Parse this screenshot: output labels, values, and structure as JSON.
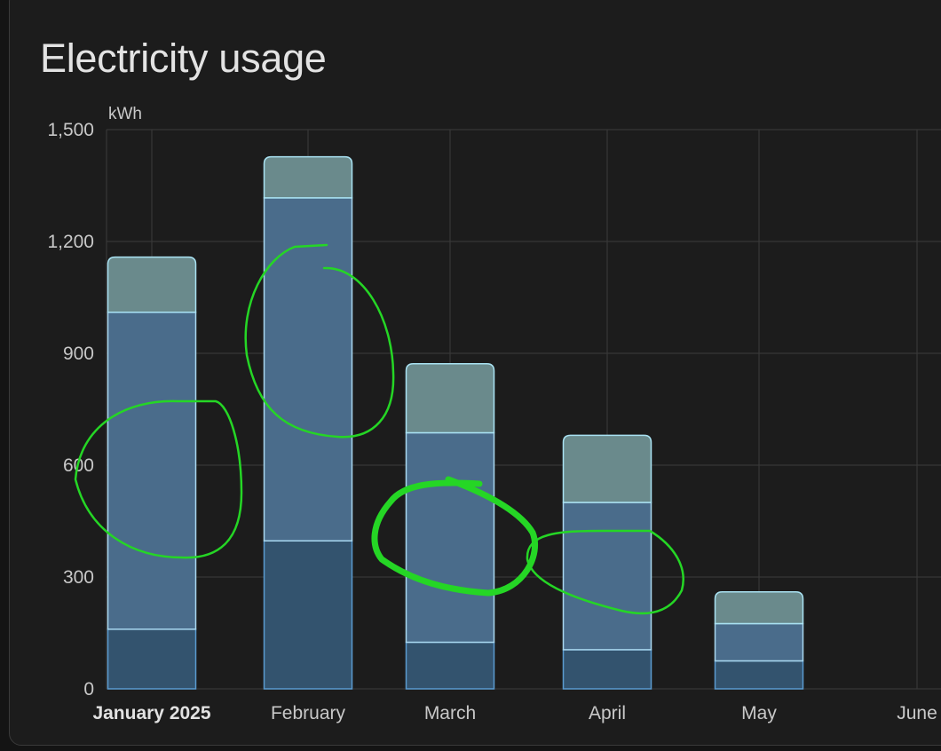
{
  "card": {
    "title": "Electricity usage"
  },
  "chart_data": {
    "type": "bar",
    "stacked": true,
    "title": "Electricity usage",
    "ylabel": "kWh",
    "ylim": [
      0,
      1500
    ],
    "yticks": [
      0,
      300,
      600,
      900,
      1200,
      1500
    ],
    "ytick_labels": [
      "0",
      "300",
      "600",
      "900",
      "1,200",
      "1,500"
    ],
    "categories": [
      "January 2025",
      "February",
      "March",
      "April",
      "May",
      "June"
    ],
    "series": [
      {
        "color": "#33536e",
        "stroke": "#5b9bd0",
        "values": [
          160,
          397,
          125,
          105,
          75,
          0
        ]
      },
      {
        "color": "#4a6c8b",
        "stroke": "#a9d8f0",
        "values": [
          850,
          920,
          562,
          395,
          100,
          0
        ]
      },
      {
        "color": "#6a8a8c",
        "stroke": "#a9e2f2",
        "values": [
          148,
          110,
          185,
          180,
          85,
          0
        ]
      }
    ],
    "grid": true,
    "legend": "none"
  },
  "annotations": {
    "color": "#25d625",
    "description_shown": false
  }
}
